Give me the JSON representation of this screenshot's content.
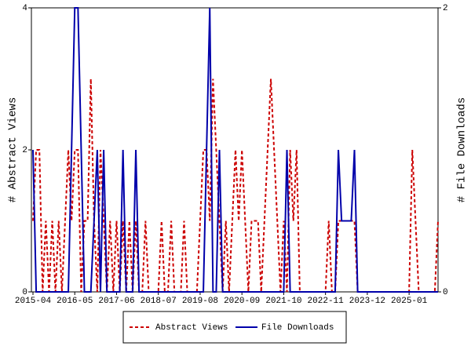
{
  "chart_data": {
    "type": "line",
    "y_label": "# Abstract Views",
    "y2_label": "# File Downloads",
    "x": [
      "2015-04",
      "2015-05",
      "2015-06",
      "2015-07",
      "2015-08",
      "2015-09",
      "2015-10",
      "2015-11",
      "2015-12",
      "2016-01",
      "2016-02",
      "2016-03",
      "2016-04",
      "2016-05",
      "2016-06",
      "2016-07",
      "2016-08",
      "2016-09",
      "2016-10",
      "2016-11",
      "2016-12",
      "2017-01",
      "2017-02",
      "2017-03",
      "2017-04",
      "2017-05",
      "2017-06",
      "2017-07",
      "2017-08",
      "2017-09",
      "2017-10",
      "2017-11",
      "2017-12",
      "2018-01",
      "2018-02",
      "2018-03",
      "2018-04",
      "2018-05",
      "2018-06",
      "2018-07",
      "2018-08",
      "2018-09",
      "2018-10",
      "2018-11",
      "2018-12",
      "2019-01",
      "2019-02",
      "2019-03",
      "2019-04",
      "2019-05",
      "2019-06",
      "2019-07",
      "2019-08",
      "2019-09",
      "2019-10",
      "2019-11",
      "2019-12",
      "2020-01",
      "2020-02",
      "2020-03",
      "2020-04",
      "2020-05",
      "2020-06",
      "2020-07",
      "2020-08",
      "2020-09",
      "2020-10",
      "2020-11",
      "2020-12",
      "2021-01",
      "2021-02",
      "2021-03",
      "2021-04",
      "2021-05",
      "2021-06",
      "2021-07",
      "2021-08",
      "2021-09",
      "2021-10",
      "2021-11",
      "2021-12",
      "2022-01",
      "2022-02",
      "2022-03",
      "2022-04",
      "2022-05",
      "2022-06",
      "2022-07",
      "2022-08",
      "2022-09",
      "2022-10",
      "2022-11",
      "2022-12",
      "2023-01",
      "2023-02",
      "2023-03",
      "2023-04",
      "2023-05",
      "2023-06",
      "2023-07",
      "2023-08",
      "2023-09",
      "2023-10",
      "2023-11",
      "2023-12",
      "2024-01",
      "2024-02",
      "2024-03",
      "2024-04",
      "2024-05",
      "2024-06",
      "2024-07",
      "2024-08",
      "2024-09",
      "2024-10",
      "2024-11",
      "2024-12",
      "2025-01",
      "2025-02",
      "2025-03",
      "2025-04",
      "2025-05",
      "2025-06",
      "2025-07",
      "2025-08",
      "2025-09",
      "2025-10"
    ],
    "xticks": [
      "2015-04",
      "2016-05",
      "2017-06",
      "2018-07",
      "2019-08",
      "2020-09",
      "2021-10",
      "2022-11",
      "2023-12",
      "2025-01"
    ],
    "ylim": [
      0,
      4
    ],
    "yticks": [
      0,
      2,
      4
    ],
    "y2lim": [
      0,
      2
    ],
    "y2ticks": [
      0,
      2
    ],
    "legend": "bottom",
    "series": [
      {
        "name": "Abstract Views",
        "color": "#cc0000",
        "dash": true,
        "values": [
          1,
          2,
          2,
          0,
          1,
          0,
          1,
          0,
          1,
          0,
          1,
          2,
          1,
          2,
          2,
          0,
          1,
          1,
          3,
          1,
          0,
          2,
          1,
          0,
          1,
          0,
          1,
          0,
          1,
          0,
          1,
          0,
          1,
          0,
          0,
          1,
          0,
          0,
          0,
          0,
          1,
          0,
          0,
          1,
          0,
          0,
          0,
          1,
          0,
          0,
          0,
          0,
          1,
          2,
          2,
          1,
          3,
          2,
          1,
          0,
          1,
          0,
          1,
          2,
          1,
          2,
          1,
          0,
          1,
          1,
          1,
          0,
          1,
          2,
          3,
          2,
          1,
          0,
          1,
          0,
          2,
          1,
          2,
          0,
          0,
          0,
          0,
          0,
          0,
          0,
          0,
          0,
          1,
          0,
          0,
          1,
          1,
          1,
          1,
          1,
          1,
          0,
          0,
          0,
          0,
          0,
          0,
          0,
          0,
          0,
          0,
          0,
          0,
          0,
          0,
          0,
          0,
          0,
          2,
          1,
          0,
          0,
          0,
          0,
          0,
          0,
          1
        ]
      },
      {
        "name": "File Downloads",
        "color": "#0000aa",
        "axis": "y2",
        "values": [
          1,
          0,
          0,
          0,
          0,
          0,
          0,
          0,
          0,
          0,
          0,
          0,
          1,
          2,
          2,
          1,
          0,
          0,
          0,
          0.5,
          1,
          0,
          1,
          0,
          0,
          0,
          0,
          0,
          1,
          0,
          0,
          0,
          1,
          0,
          0,
          0,
          0,
          0,
          0,
          0,
          0,
          0,
          0,
          0,
          0,
          0,
          0,
          0,
          0,
          0,
          0,
          0,
          0,
          0,
          1,
          2,
          0,
          0,
          1,
          0,
          0,
          0,
          0,
          0,
          0,
          0,
          0,
          0,
          0,
          0,
          0,
          0,
          0,
          0,
          0,
          0,
          0,
          0,
          0,
          1,
          0,
          0,
          0,
          0,
          0,
          0,
          0,
          0,
          0,
          0,
          0,
          0,
          0,
          0,
          0,
          1,
          0.5,
          0.5,
          0.5,
          0.5,
          1,
          0,
          0,
          0,
          0,
          0,
          0,
          0,
          0,
          0,
          0,
          0,
          0,
          0,
          0,
          0,
          0,
          0,
          0,
          0,
          0,
          0,
          0,
          0,
          0,
          0,
          0
        ]
      }
    ]
  }
}
